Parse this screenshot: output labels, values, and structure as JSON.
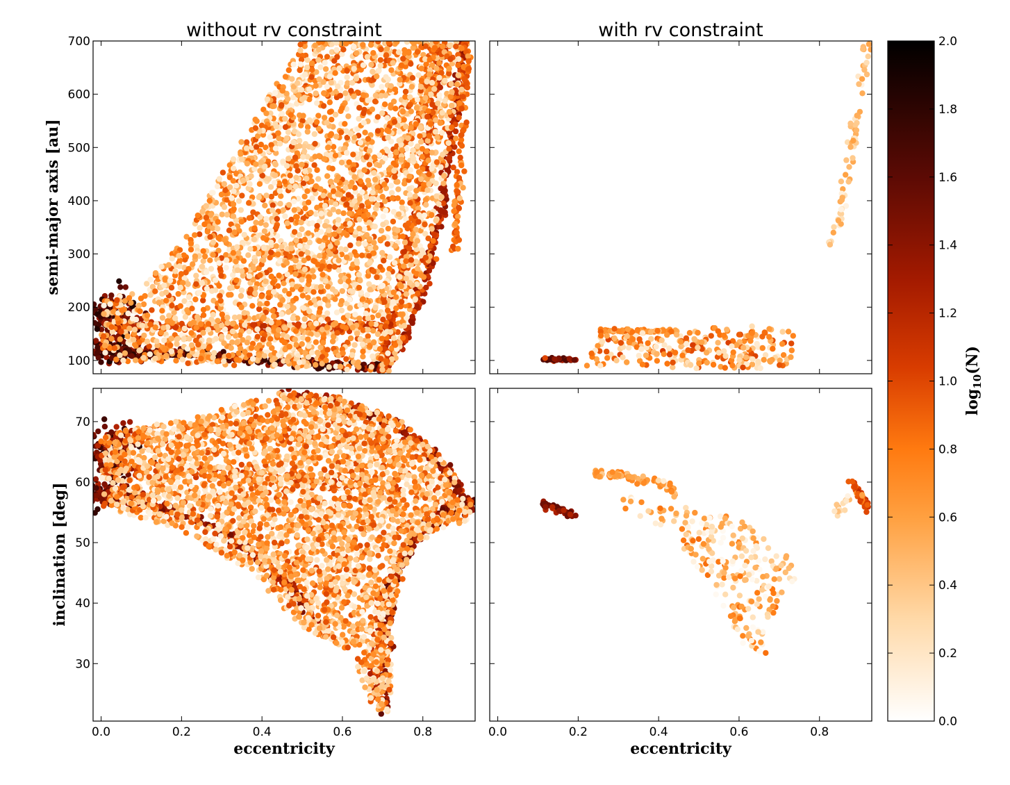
{
  "chart_data": [
    {
      "type": "heatmap",
      "id": "top-left",
      "title": "without rv constraint",
      "xlabel": "",
      "ylabel": "semi-major axis [au]",
      "xlim": [
        -0.02,
        0.93
      ],
      "ylim": [
        75,
        700
      ],
      "xticks": [
        0.0,
        0.2,
        0.4,
        0.6,
        0.8
      ],
      "yticks": [
        100,
        200,
        300,
        400,
        500,
        600,
        700
      ],
      "xtick_labels_visible": false,
      "density_regions": [
        {
          "shape": "blob",
          "x": 0.03,
          "y": 185,
          "sx": 0.035,
          "sy": 22,
          "level": 1.9,
          "count": 140
        },
        {
          "shape": "blob",
          "x": 0.03,
          "y": 120,
          "sx": 0.04,
          "sy": 10,
          "level": 1.9,
          "count": 110
        },
        {
          "shape": "band",
          "points": [
            [
              0.0,
              118
            ],
            [
              0.2,
              112
            ],
            [
              0.4,
              100
            ],
            [
              0.55,
              92
            ],
            [
              0.7,
              88
            ]
          ],
          "width": 7,
          "level": 1.8,
          "count": 260
        },
        {
          "shape": "band",
          "points": [
            [
              0.0,
              165
            ],
            [
              0.3,
              163
            ],
            [
              0.55,
              163
            ],
            [
              0.72,
              165
            ]
          ],
          "width": 8,
          "level": 1.2,
          "count": 200
        },
        {
          "shape": "band",
          "points": [
            [
              0.7,
              80
            ],
            [
              0.76,
              150
            ],
            [
              0.81,
              260
            ],
            [
              0.85,
              400
            ],
            [
              0.88,
              560
            ],
            [
              0.9,
              700
            ]
          ],
          "width": 6,
          "level": 1.4,
          "count": 260
        },
        {
          "shape": "band",
          "points": [
            [
              0.7,
              100
            ],
            [
              0.73,
              200
            ],
            [
              0.76,
              300
            ],
            [
              0.8,
              450
            ],
            [
              0.83,
              600
            ],
            [
              0.85,
              700
            ]
          ],
          "width": 6,
          "level": 1.2,
          "count": 200
        },
        {
          "shape": "band",
          "points": [
            [
              0.55,
              300
            ],
            [
              0.65,
              380
            ],
            [
              0.74,
              480
            ],
            [
              0.8,
              580
            ],
            [
              0.83,
              700
            ]
          ],
          "width": 7,
          "level": 1.0,
          "count": 160
        },
        {
          "shape": "band",
          "points": [
            [
              0.88,
              300
            ],
            [
              0.89,
              450
            ],
            [
              0.9,
              600
            ],
            [
              0.91,
              700
            ]
          ],
          "width": 6,
          "level": 1.0,
          "count": 120
        },
        {
          "shape": "region",
          "poly": [
            [
              0.0,
              100
            ],
            [
              0.72,
              80
            ],
            [
              0.76,
              150
            ],
            [
              0.82,
              300
            ],
            [
              0.87,
              500
            ],
            [
              0.9,
              700
            ],
            [
              0.5,
              700
            ],
            [
              0.42,
              600
            ],
            [
              0.3,
              450
            ],
            [
              0.2,
              320
            ],
            [
              0.1,
              240
            ],
            [
              0.0,
              210
            ]
          ],
          "level": 0.55,
          "count": 3200
        }
      ]
    },
    {
      "type": "heatmap",
      "id": "top-right",
      "title": "with rv constraint",
      "xlabel": "",
      "ylabel": "",
      "xlim": [
        -0.02,
        0.93
      ],
      "ylim": [
        75,
        700
      ],
      "xticks": [
        0.0,
        0.2,
        0.4,
        0.6,
        0.8
      ],
      "yticks": [
        100,
        200,
        300,
        400,
        500,
        600,
        700
      ],
      "xtick_labels_visible": false,
      "ytick_labels_visible": false,
      "density_regions": [
        {
          "shape": "band",
          "points": [
            [
              0.11,
              103
            ],
            [
              0.15,
              102
            ],
            [
              0.2,
              101
            ]
          ],
          "width": 3,
          "level": 1.7,
          "count": 40
        },
        {
          "shape": "band",
          "points": [
            [
              0.25,
              155
            ],
            [
              0.35,
              155
            ],
            [
              0.45,
              155
            ]
          ],
          "width": 4,
          "level": 0.9,
          "count": 60
        },
        {
          "shape": "region",
          "poly": [
            [
              0.22,
              90
            ],
            [
              0.45,
              85
            ],
            [
              0.72,
              85
            ],
            [
              0.76,
              150
            ],
            [
              0.6,
              168
            ],
            [
              0.45,
              155
            ],
            [
              0.25,
              150
            ]
          ],
          "level": 0.6,
          "count": 260
        },
        {
          "shape": "band",
          "points": [
            [
              0.83,
              320
            ],
            [
              0.86,
              400
            ],
            [
              0.88,
              500
            ],
            [
              0.9,
              600
            ],
            [
              0.92,
              700
            ]
          ],
          "width": 4,
          "level": 0.6,
          "count": 70
        }
      ]
    },
    {
      "type": "heatmap",
      "id": "bottom-left",
      "title": "",
      "xlabel": "eccentricity",
      "ylabel": "inclination [deg]",
      "xlim": [
        -0.02,
        0.93
      ],
      "ylim": [
        20.5,
        75.5
      ],
      "xticks": [
        0.0,
        0.2,
        0.4,
        0.6,
        0.8
      ],
      "yticks": [
        30,
        40,
        50,
        60,
        70
      ],
      "density_regions": [
        {
          "shape": "blob",
          "x": 0.02,
          "y": 65,
          "sx": 0.04,
          "sy": 2.0,
          "level": 1.8,
          "count": 140
        },
        {
          "shape": "blob",
          "x": 0.02,
          "y": 58,
          "sx": 0.04,
          "sy": 1.0,
          "level": 1.8,
          "count": 120
        },
        {
          "shape": "band",
          "points": [
            [
              0.0,
              58
            ],
            [
              0.15,
              56
            ],
            [
              0.3,
              52
            ],
            [
              0.4,
              47
            ],
            [
              0.48,
              42
            ],
            [
              0.53,
              37
            ]
          ],
          "width": 0.8,
          "level": 1.5,
          "count": 220
        },
        {
          "shape": "band",
          "points": [
            [
              0.45,
              75
            ],
            [
              0.6,
              73
            ],
            [
              0.72,
              70
            ],
            [
              0.82,
              65
            ],
            [
              0.88,
              60
            ],
            [
              0.92,
              55
            ]
          ],
          "width": 0.9,
          "level": 1.5,
          "count": 220
        },
        {
          "shape": "band",
          "points": [
            [
              0.7,
              22
            ],
            [
              0.71,
              35
            ],
            [
              0.73,
              45
            ],
            [
              0.78,
              51
            ],
            [
              0.85,
              55
            ],
            [
              0.92,
              57
            ]
          ],
          "width": 1.0,
          "level": 1.6,
          "count": 280
        },
        {
          "shape": "band",
          "points": [
            [
              0.68,
              25
            ],
            [
              0.69,
              35
            ],
            [
              0.7,
              42
            ]
          ],
          "width": 0.8,
          "level": 1.3,
          "count": 100
        },
        {
          "shape": "band",
          "points": [
            [
              0.0,
              62
            ],
            [
              0.2,
              62
            ],
            [
              0.4,
              61
            ],
            [
              0.6,
              60
            ],
            [
              0.75,
              58
            ]
          ],
          "width": 1.2,
          "level": 1.1,
          "count": 160
        },
        {
          "shape": "band",
          "points": [
            [
              0.2,
              69
            ],
            [
              0.4,
              68
            ],
            [
              0.6,
              67
            ],
            [
              0.8,
              66
            ]
          ],
          "width": 1.0,
          "level": 1.0,
          "count": 140
        },
        {
          "shape": "region",
          "poly": [
            [
              0.0,
              56
            ],
            [
              0.2,
              52
            ],
            [
              0.35,
              46
            ],
            [
              0.5,
              36
            ],
            [
              0.62,
              32
            ],
            [
              0.68,
              22
            ],
            [
              0.72,
              22
            ],
            [
              0.73,
              40
            ],
            [
              0.78,
              50
            ],
            [
              0.92,
              54
            ],
            [
              0.92,
              57
            ],
            [
              0.85,
              64
            ],
            [
              0.75,
              70
            ],
            [
              0.6,
              74
            ],
            [
              0.45,
              75
            ],
            [
              0.3,
              72
            ],
            [
              0.1,
              69
            ],
            [
              0.0,
              68
            ]
          ],
          "level": 0.55,
          "count": 3200
        }
      ]
    },
    {
      "type": "heatmap",
      "id": "bottom-right",
      "title": "",
      "xlabel": "eccentricity",
      "ylabel": "",
      "xlim": [
        -0.02,
        0.93
      ],
      "ylim": [
        20.5,
        75.5
      ],
      "xticks": [
        0.0,
        0.2,
        0.4,
        0.6,
        0.8
      ],
      "yticks": [
        30,
        40,
        50,
        60,
        70
      ],
      "ytick_labels_visible": false,
      "density_regions": [
        {
          "shape": "band",
          "points": [
            [
              0.11,
              56.5
            ],
            [
              0.15,
              55.5
            ],
            [
              0.19,
              54.5
            ]
          ],
          "width": 0.5,
          "level": 1.6,
          "count": 50
        },
        {
          "shape": "band",
          "points": [
            [
              0.24,
              61.5
            ],
            [
              0.32,
              61
            ],
            [
              0.4,
              60
            ],
            [
              0.45,
              58
            ]
          ],
          "width": 0.8,
          "level": 0.8,
          "count": 80
        },
        {
          "shape": "region",
          "poly": [
            [
              0.3,
              58
            ],
            [
              0.45,
              56
            ],
            [
              0.6,
              54
            ],
            [
              0.72,
              48
            ],
            [
              0.75,
              45
            ],
            [
              0.7,
              40
            ],
            [
              0.65,
              34
            ],
            [
              0.7,
              30
            ],
            [
              0.62,
              32
            ],
            [
              0.52,
              44
            ],
            [
              0.42,
              52
            ],
            [
              0.3,
              56
            ]
          ],
          "level": 0.4,
          "count": 260
        },
        {
          "shape": "band",
          "points": [
            [
              0.88,
              60
            ],
            [
              0.9,
              58
            ],
            [
              0.92,
              56
            ]
          ],
          "width": 0.8,
          "level": 1.2,
          "count": 40
        },
        {
          "shape": "band",
          "points": [
            [
              0.83,
              54
            ],
            [
              0.86,
              56
            ],
            [
              0.88,
              58
            ]
          ],
          "width": 0.6,
          "level": 0.5,
          "count": 15
        }
      ]
    }
  ],
  "colorbar": {
    "label": "log10(N)",
    "label_main": "log",
    "label_sub": "10",
    "label_arg": "(N)",
    "range": [
      0.0,
      2.0
    ],
    "ticks": [
      "0.0",
      "0.2",
      "0.4",
      "0.6",
      "0.8",
      "1.0",
      "1.2",
      "1.4",
      "1.6",
      "1.8",
      "2.0"
    ],
    "colormap": "gist_heat_r"
  }
}
